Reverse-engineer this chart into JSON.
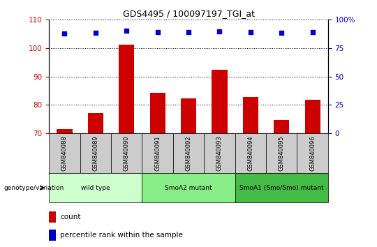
{
  "title": "GDS4495 / 100097197_TGI_at",
  "samples": [
    "GSM840088",
    "GSM840089",
    "GSM840090",
    "GSM840091",
    "GSM840092",
    "GSM840093",
    "GSM840094",
    "GSM840095",
    "GSM840096"
  ],
  "counts": [
    71.5,
    77.2,
    101.2,
    84.2,
    82.4,
    92.5,
    82.8,
    74.8,
    81.8
  ],
  "percentile_ranks": [
    88,
    88.5,
    90.5,
    89,
    89,
    90,
    89,
    88.5,
    89
  ],
  "ylim_left": [
    70,
    110
  ],
  "ylim_right": [
    0,
    100
  ],
  "yticks_left": [
    70,
    80,
    90,
    100,
    110
  ],
  "yticks_right": [
    0,
    25,
    50,
    75,
    100
  ],
  "bar_color": "#cc0000",
  "dot_color": "#0000cc",
  "groups": [
    {
      "label": "wild type",
      "start": 0,
      "end": 3,
      "color": "#ccffcc"
    },
    {
      "label": "SmoA2 mutant",
      "start": 3,
      "end": 6,
      "color": "#88ee88"
    },
    {
      "label": "SmoA1 (Smo/Smo) mutant",
      "start": 6,
      "end": 9,
      "color": "#44bb44"
    }
  ],
  "group_label": "genotype/variation",
  "legend_count": "count",
  "legend_percentile": "percentile rank within the sample",
  "tick_label_color_left": "#cc0000",
  "tick_label_color_right": "#0000cc",
  "bar_bottom": 70,
  "sample_bg_color": "#cccccc"
}
